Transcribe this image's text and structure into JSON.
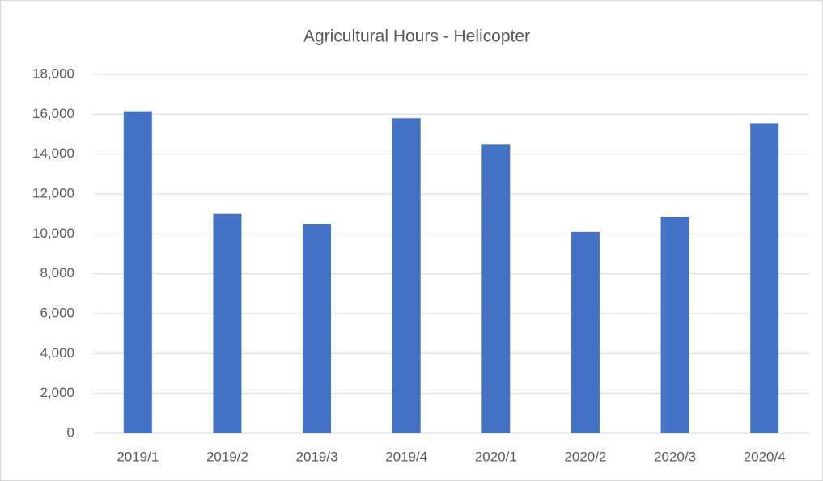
{
  "chart_data": {
    "type": "bar",
    "title": "Agricultural Hours - Helicopter",
    "categories": [
      "2019/1",
      "2019/2",
      "2019/3",
      "2019/4",
      "2020/1",
      "2020/2",
      "2020/3",
      "2020/4"
    ],
    "values": [
      16150,
      11000,
      10500,
      15800,
      14500,
      10100,
      10850,
      15550
    ],
    "color": "#4472c4",
    "ylim": [
      0,
      18000
    ],
    "yticks": [
      0,
      {
        "value": 2000,
        "label": "2,000"
      },
      {
        "value": 4000,
        "label": "4,000"
      },
      {
        "value": 6000,
        "label": "6,000"
      },
      {
        "value": 8000,
        "label": "8,000"
      },
      {
        "value": 10000,
        "label": "10,000"
      },
      {
        "value": 12000,
        "label": "12,000"
      },
      {
        "value": 14000,
        "label": "14,000"
      },
      {
        "value": 16000,
        "label": "16,000"
      },
      {
        "value": 18000,
        "label": "18,000"
      }
    ],
    "grid": true
  }
}
